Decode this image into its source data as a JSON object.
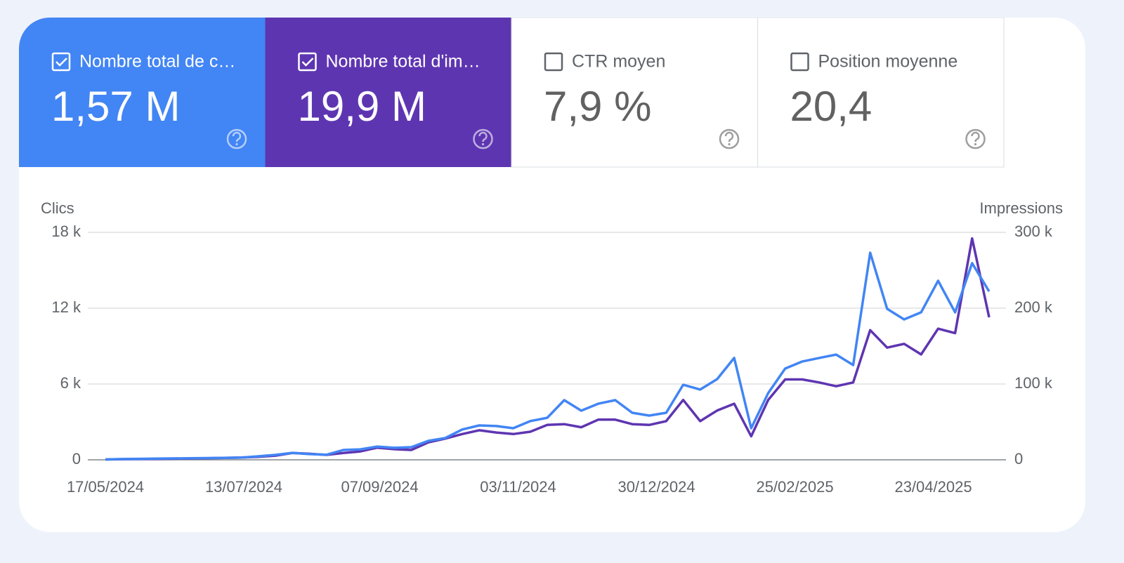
{
  "cards": [
    {
      "label": "Nombre total de c…",
      "value": "1,57 M",
      "checked": true,
      "color": "#4285f4"
    },
    {
      "label": "Nombre total d'im…",
      "value": "19,9 M",
      "checked": true,
      "color": "#5e35b1"
    },
    {
      "label": "CTR moyen",
      "value": "7,9 %",
      "checked": false,
      "color": "#ffffff"
    },
    {
      "label": "Position moyenne",
      "value": "20,4",
      "checked": false,
      "color": "#ffffff"
    }
  ],
  "chart_data": {
    "type": "line",
    "ylabel": "Clics",
    "y2label": "Impressions",
    "x": [
      "17/05/2024",
      "24/05/2024",
      "31/05/2024",
      "07/06/2024",
      "14/06/2024",
      "21/06/2024",
      "28/06/2024",
      "05/07/2024",
      "12/07/2024",
      "19/07/2024",
      "26/07/2024",
      "02/08/2024",
      "09/08/2024",
      "16/08/2024",
      "23/08/2024",
      "30/08/2024",
      "06/09/2024",
      "13/09/2024",
      "20/09/2024",
      "27/09/2024",
      "04/10/2024",
      "11/10/2024",
      "18/10/2024",
      "25/10/2024",
      "01/11/2024",
      "08/11/2024",
      "15/11/2024",
      "22/11/2024",
      "29/11/2024",
      "06/12/2024",
      "13/12/2024",
      "20/12/2024",
      "27/12/2024",
      "03/01/2025",
      "10/01/2025",
      "17/01/2025",
      "24/01/2025",
      "31/01/2025",
      "07/02/2025",
      "14/02/2025",
      "21/02/2025",
      "28/02/2025",
      "07/03/2025",
      "14/03/2025",
      "21/03/2025",
      "28/03/2025",
      "04/04/2025",
      "11/04/2025",
      "18/04/2025",
      "25/04/2025",
      "02/05/2025",
      "09/05/2025",
      "16/05/2025"
    ],
    "series": [
      {
        "name": "Clics",
        "color": "#4285f4",
        "axis": "y",
        "values": [
          30,
          60,
          80,
          100,
          110,
          120,
          140,
          150,
          170,
          280,
          390,
          550,
          450,
          400,
          780,
          830,
          1050,
          950,
          1000,
          1500,
          1720,
          2400,
          2720,
          2670,
          2500,
          3060,
          3330,
          4720,
          3890,
          4440,
          4720,
          3720,
          3500,
          3720,
          5940,
          5560,
          6390,
          8060,
          2500,
          5280,
          7220,
          7780,
          8060,
          8330,
          7500,
          16390,
          11950,
          11110,
          11670,
          14170,
          11670,
          15560,
          13330
        ]
      },
      {
        "name": "Impressions",
        "color": "#5e35b1",
        "axis": "y2",
        "values": [
          500,
          800,
          1000,
          1200,
          1500,
          1800,
          2000,
          2500,
          3000,
          4000,
          5500,
          9000,
          8000,
          6500,
          9000,
          11000,
          16000,
          14000,
          13000,
          23000,
          28000,
          34000,
          39000,
          36000,
          34000,
          37000,
          46000,
          47000,
          43000,
          53000,
          53000,
          47000,
          46000,
          51000,
          79000,
          51000,
          65000,
          74000,
          31000,
          79000,
          106000,
          106000,
          102000,
          97000,
          102000,
          171000,
          148000,
          153000,
          139000,
          173000,
          167000,
          292000,
          188000
        ]
      }
    ],
    "ylim": [
      0,
      18000
    ],
    "yticks": [
      {
        "value": 0,
        "label": "0"
      },
      {
        "value": 6000,
        "label": "6 k"
      },
      {
        "value": 12000,
        "label": "12 k"
      },
      {
        "value": 18000,
        "label": "18 k"
      }
    ],
    "y2lim": [
      0,
      300000
    ],
    "y2ticks": [
      {
        "value": 0,
        "label": "0"
      },
      {
        "value": 100000,
        "label": "100 k"
      },
      {
        "value": 200000,
        "label": "200 k"
      },
      {
        "value": 300000,
        "label": "300 k"
      }
    ],
    "xticks": [
      "17/05/2024",
      "13/07/2024",
      "07/09/2024",
      "03/11/2024",
      "30/12/2024",
      "25/02/2025",
      "23/04/2025"
    ],
    "grid": true
  }
}
